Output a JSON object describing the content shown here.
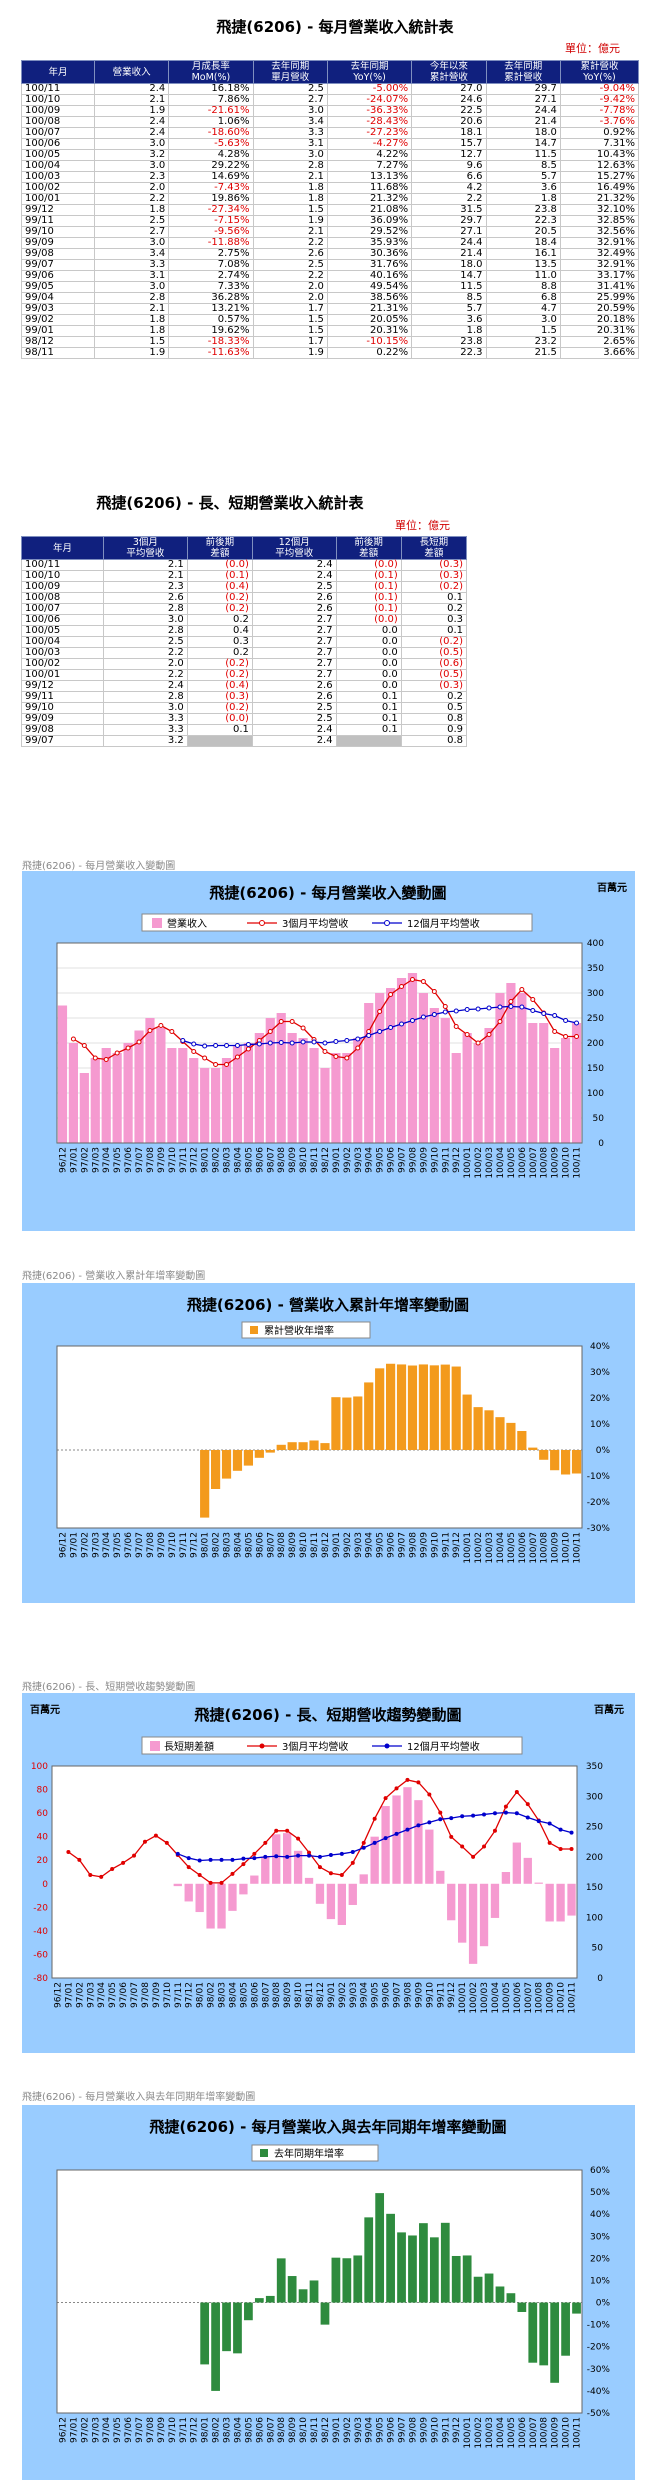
{
  "table1": {
    "title": "飛捷(6206) - 每月營業收入統計表",
    "unit": "單位：億元",
    "headers": [
      "年月",
      "營業收入",
      "月成長率\nMoM(%)",
      "去年同期\n單月營收",
      "去年同期\nYoY(%)",
      "今年以來\n累計營收",
      "去年同期\n累計營收",
      "累計營收\nYoY(%)"
    ],
    "rows": [
      [
        "100/11",
        "2.4",
        "16.18%",
        "2.5",
        "-5.00%",
        "27.0",
        "29.7",
        "-9.04%"
      ],
      [
        "100/10",
        "2.1",
        "7.86%",
        "2.7",
        "-24.07%",
        "24.6",
        "27.1",
        "-9.42%"
      ],
      [
        "100/09",
        "1.9",
        "-21.61%",
        "3.0",
        "-36.33%",
        "22.5",
        "24.4",
        "-7.78%"
      ],
      [
        "100/08",
        "2.4",
        "1.06%",
        "3.4",
        "-28.43%",
        "20.6",
        "21.4",
        "-3.76%"
      ],
      [
        "100/07",
        "2.4",
        "-18.60%",
        "3.3",
        "-27.23%",
        "18.1",
        "18.0",
        "0.92%"
      ],
      [
        "100/06",
        "3.0",
        "-5.63%",
        "3.1",
        "-4.27%",
        "15.7",
        "14.7",
        "7.31%"
      ],
      [
        "100/05",
        "3.2",
        "4.28%",
        "3.0",
        "4.22%",
        "12.7",
        "11.5",
        "10.43%"
      ],
      [
        "100/04",
        "3.0",
        "29.22%",
        "2.8",
        "7.27%",
        "9.6",
        "8.5",
        "12.63%"
      ],
      [
        "100/03",
        "2.3",
        "14.69%",
        "2.1",
        "13.13%",
        "6.6",
        "5.7",
        "15.27%"
      ],
      [
        "100/02",
        "2.0",
        "-7.43%",
        "1.8",
        "11.68%",
        "4.2",
        "3.6",
        "16.49%"
      ],
      [
        "100/01",
        "2.2",
        "19.86%",
        "1.8",
        "21.32%",
        "2.2",
        "1.8",
        "21.32%"
      ],
      [
        "99/12",
        "1.8",
        "-27.34%",
        "1.5",
        "21.08%",
        "31.5",
        "23.8",
        "32.10%"
      ],
      [
        "99/11",
        "2.5",
        "-7.15%",
        "1.9",
        "36.09%",
        "29.7",
        "22.3",
        "32.85%"
      ],
      [
        "99/10",
        "2.7",
        "-9.56%",
        "2.1",
        "29.52%",
        "27.1",
        "20.5",
        "32.56%"
      ],
      [
        "99/09",
        "3.0",
        "-11.88%",
        "2.2",
        "35.93%",
        "24.4",
        "18.4",
        "32.91%"
      ],
      [
        "99/08",
        "3.4",
        "2.75%",
        "2.6",
        "30.36%",
        "21.4",
        "16.1",
        "32.49%"
      ],
      [
        "99/07",
        "3.3",
        "7.08%",
        "2.5",
        "31.76%",
        "18.0",
        "13.5",
        "32.91%"
      ],
      [
        "99/06",
        "3.1",
        "2.74%",
        "2.2",
        "40.16%",
        "14.7",
        "11.0",
        "33.17%"
      ],
      [
        "99/05",
        "3.0",
        "7.33%",
        "2.0",
        "49.54%",
        "11.5",
        "8.8",
        "31.41%"
      ],
      [
        "99/04",
        "2.8",
        "36.28%",
        "2.0",
        "38.56%",
        "8.5",
        "6.8",
        "25.99%"
      ],
      [
        "99/03",
        "2.1",
        "13.21%",
        "1.7",
        "21.31%",
        "5.7",
        "4.7",
        "20.59%"
      ],
      [
        "99/02",
        "1.8",
        "0.57%",
        "1.5",
        "20.05%",
        "3.6",
        "3.0",
        "20.18%"
      ],
      [
        "99/01",
        "1.8",
        "19.62%",
        "1.5",
        "20.31%",
        "1.8",
        "1.5",
        "20.31%"
      ],
      [
        "98/12",
        "1.5",
        "-18.33%",
        "1.7",
        "-10.15%",
        "23.8",
        "23.2",
        "2.65%"
      ],
      [
        "98/11",
        "1.9",
        "-11.63%",
        "1.9",
        "0.22%",
        "22.3",
        "21.5",
        "3.66%"
      ]
    ]
  },
  "table2": {
    "title": "飛捷(6206) - 長、短期營業收入統計表",
    "unit": "單位：億元",
    "headers": [
      "年月",
      "3個月\n平均營收",
      "前後期\n差額",
      "12個月\n平均營收",
      "前後期\n差額",
      "長短期\n差額"
    ],
    "rows": [
      [
        "100/11",
        "2.1",
        "(0.0)",
        "2.4",
        "(0.0)",
        "(0.3)"
      ],
      [
        "100/10",
        "2.1",
        "(0.1)",
        "2.4",
        "(0.1)",
        "(0.3)"
      ],
      [
        "100/09",
        "2.3",
        "(0.4)",
        "2.5",
        "(0.1)",
        "(0.2)"
      ],
      [
        "100/08",
        "2.6",
        "(0.2)",
        "2.6",
        "(0.1)",
        "0.1"
      ],
      [
        "100/07",
        "2.8",
        "(0.2)",
        "2.6",
        "(0.1)",
        "0.2"
      ],
      [
        "100/06",
        "3.0",
        "0.2",
        "2.7",
        "(0.0)",
        "0.3"
      ],
      [
        "100/05",
        "2.8",
        "0.4",
        "2.7",
        "0.0",
        "0.1"
      ],
      [
        "100/04",
        "2.5",
        "0.3",
        "2.7",
        "0.0",
        "(0.2)"
      ],
      [
        "100/03",
        "2.2",
        "0.2",
        "2.7",
        "0.0",
        "(0.5)"
      ],
      [
        "100/02",
        "2.0",
        "(0.2)",
        "2.7",
        "0.0",
        "(0.6)"
      ],
      [
        "100/01",
        "2.2",
        "(0.2)",
        "2.7",
        "0.0",
        "(0.5)"
      ],
      [
        "99/12",
        "2.4",
        "(0.4)",
        "2.6",
        "0.0",
        "(0.3)"
      ],
      [
        "99/11",
        "2.8",
        "(0.3)",
        "2.6",
        "0.1",
        "0.2"
      ],
      [
        "99/10",
        "3.0",
        "(0.2)",
        "2.5",
        "0.1",
        "0.5"
      ],
      [
        "99/09",
        "3.3",
        "(0.0)",
        "2.5",
        "0.1",
        "0.8"
      ],
      [
        "99/08",
        "3.3",
        "0.1",
        "2.4",
        "0.1",
        "0.9"
      ],
      [
        "99/07",
        "3.2",
        "",
        "2.4",
        "",
        "0.8"
      ]
    ]
  },
  "section_labels": [
    "飛捷(6206) - 每月營業收入變動圖",
    "飛捷(6206) -  營業收入累計年增率變動圖",
    "飛捷(6206) -  長、短期營收趨勢變動圖",
    "飛捷(6206) - 每月營業收入與去年同期年增率變動圖"
  ],
  "colors": {
    "header_bg": "#10207e",
    "panel_bg": "#99ccff",
    "pink": "#f59ad0",
    "orange": "#f39a1c",
    "green": "#2e8b3e",
    "red": "#e00000",
    "blue": "#0000cc"
  },
  "chart_data": [
    {
      "type": "bar",
      "title": "飛捷(6206) - 每月營業收入變動圖",
      "unit_label": "百萬元",
      "xlabels": [
        "96/12",
        "97/01",
        "97/02",
        "97/03",
        "97/04",
        "97/05",
        "97/06",
        "97/07",
        "97/08",
        "97/09",
        "97/10",
        "97/11",
        "97/12",
        "98/01",
        "98/02",
        "98/03",
        "98/04",
        "98/05",
        "98/06",
        "98/07",
        "98/08",
        "98/09",
        "98/10",
        "98/11",
        "98/12",
        "99/01",
        "99/02",
        "99/03",
        "99/04",
        "99/05",
        "99/06",
        "99/07",
        "99/08",
        "99/09",
        "99/10",
        "99/11",
        "99/12",
        "100/01",
        "100/02",
        "100/03",
        "100/04",
        "100/05",
        "100/06",
        "100/07",
        "100/08",
        "100/09",
        "100/10",
        "100/11"
      ],
      "ylim": [
        0,
        400
      ],
      "series": [
        {
          "name": "營業收入",
          "type": "bar",
          "values": [
            275,
            200,
            140,
            170,
            190,
            180,
            200,
            225,
            250,
            230,
            190,
            190,
            170,
            150,
            150,
            170,
            195,
            200,
            220,
            250,
            260,
            220,
            210,
            190,
            150,
            180,
            180,
            210,
            280,
            300,
            310,
            330,
            340,
            300,
            270,
            250,
            180,
            220,
            200,
            230,
            300,
            320,
            300,
            240,
            240,
            190,
            210,
            240
          ]
        },
        {
          "name": "3個月平均營收",
          "type": "line",
          "values": [
            null,
            208,
            195,
            170,
            167,
            180,
            190,
            202,
            225,
            235,
            223,
            203,
            183,
            170,
            157,
            157,
            172,
            188,
            205,
            223,
            243,
            243,
            230,
            207,
            183,
            173,
            170,
            190,
            223,
            263,
            297,
            313,
            327,
            323,
            303,
            273,
            233,
            217,
            200,
            217,
            243,
            283,
            307,
            287,
            260,
            223,
            213,
            213
          ]
        },
        {
          "name": "12個月平均營收",
          "type": "line",
          "values": [
            null,
            null,
            null,
            null,
            null,
            null,
            null,
            null,
            null,
            null,
            null,
            205,
            198,
            194,
            195,
            195,
            195,
            197,
            198,
            200,
            201,
            200,
            202,
            202,
            200,
            203,
            205,
            208,
            215,
            223,
            231,
            238,
            245,
            252,
            257,
            262,
            264,
            267,
            268,
            270,
            272,
            273,
            272,
            265,
            259,
            255,
            245,
            240
          ]
        }
      ],
      "yticks": [
        0,
        50,
        100,
        150,
        200,
        250,
        300,
        350,
        400
      ]
    },
    {
      "type": "bar",
      "title": "飛捷(6206) -  營業收入累計年增率變動圖",
      "legend": "累計營收年增率",
      "xlabels": [
        "96/12",
        "97/01",
        "97/02",
        "97/03",
        "97/04",
        "97/05",
        "97/06",
        "97/07",
        "97/08",
        "97/09",
        "97/10",
        "97/11",
        "97/12",
        "98/01",
        "98/02",
        "98/03",
        "98/04",
        "98/05",
        "98/06",
        "98/07",
        "98/08",
        "98/09",
        "98/10",
        "98/11",
        "98/12",
        "99/01",
        "99/02",
        "99/03",
        "99/04",
        "99/05",
        "99/06",
        "99/07",
        "99/08",
        "99/09",
        "99/10",
        "99/11",
        "99/12",
        "100/01",
        "100/02",
        "100/03",
        "100/04",
        "100/05",
        "100/06",
        "100/07",
        "100/08",
        "100/09",
        "100/10",
        "100/11"
      ],
      "ylim": [
        -30,
        40
      ],
      "yticks": [
        -30,
        -20,
        -10,
        0,
        10,
        20,
        30,
        40
      ],
      "values": [
        null,
        null,
        null,
        null,
        null,
        null,
        null,
        null,
        null,
        null,
        null,
        null,
        null,
        -26,
        -15,
        -11,
        -8,
        -6,
        -3,
        -1,
        2,
        3,
        3,
        3.66,
        2.65,
        20.31,
        20.18,
        20.59,
        25.99,
        31.41,
        33.17,
        32.91,
        32.49,
        32.91,
        32.56,
        32.85,
        32.1,
        21.32,
        16.49,
        15.27,
        12.63,
        10.43,
        7.31,
        0.92,
        -3.76,
        -7.78,
        -9.42,
        -9.04
      ]
    },
    {
      "type": "bar",
      "title": "飛捷(6206) -  長、短期營收趨勢變動圖",
      "unit_label_left": "百萬元",
      "unit_label_right": "百萬元",
      "xlabels": [
        "96/12",
        "97/01",
        "97/02",
        "97/03",
        "97/04",
        "97/05",
        "97/06",
        "97/07",
        "97/08",
        "97/09",
        "97/10",
        "97/11",
        "97/12",
        "98/01",
        "98/02",
        "98/03",
        "98/04",
        "98/05",
        "98/06",
        "98/07",
        "98/08",
        "98/09",
        "98/10",
        "98/11",
        "98/12",
        "99/01",
        "99/02",
        "99/03",
        "99/04",
        "99/05",
        "99/06",
        "99/07",
        "99/08",
        "99/09",
        "99/10",
        "99/11",
        "99/12",
        "100/01",
        "100/02",
        "100/03",
        "100/04",
        "100/05",
        "100/06",
        "100/07",
        "100/08",
        "100/09",
        "100/10",
        "100/11"
      ],
      "ylim_left": [
        -80,
        100
      ],
      "ylim_right": [
        0,
        350
      ],
      "yticks_left": [
        -80,
        -60,
        -40,
        -20,
        0,
        20,
        40,
        60,
        80,
        100
      ],
      "yticks_right": [
        0,
        50,
        100,
        150,
        200,
        250,
        300,
        350
      ],
      "series": [
        {
          "name": "長短期差額",
          "type": "bar",
          "axis": "left",
          "values": [
            null,
            null,
            null,
            null,
            null,
            null,
            null,
            null,
            null,
            null,
            null,
            -2,
            -15,
            -24,
            -38,
            -38,
            -23,
            -9,
            7,
            23,
            42,
            43,
            28,
            5,
            -17,
            -30,
            -35,
            -18,
            8,
            40,
            66,
            75,
            82,
            71,
            46,
            11,
            -31,
            -50,
            -68,
            -53,
            -29,
            10,
            35,
            22,
            1,
            -32,
            -32,
            -27
          ]
        },
        {
          "name": "3個月平均營收",
          "type": "line",
          "axis": "right",
          "values": [
            null,
            208,
            195,
            170,
            167,
            180,
            190,
            202,
            225,
            235,
            223,
            203,
            183,
            170,
            157,
            157,
            172,
            188,
            205,
            223,
            243,
            243,
            230,
            207,
            183,
            173,
            170,
            190,
            223,
            263,
            297,
            313,
            327,
            323,
            303,
            273,
            233,
            217,
            200,
            217,
            243,
            283,
            307,
            287,
            260,
            223,
            213,
            213
          ]
        },
        {
          "name": "12個月平均營收",
          "type": "line",
          "axis": "right",
          "values": [
            null,
            null,
            null,
            null,
            null,
            null,
            null,
            null,
            null,
            null,
            null,
            205,
            198,
            194,
            195,
            195,
            195,
            197,
            198,
            200,
            201,
            200,
            202,
            202,
            200,
            203,
            205,
            208,
            215,
            223,
            231,
            238,
            245,
            252,
            257,
            262,
            264,
            267,
            268,
            270,
            272,
            273,
            272,
            265,
            259,
            255,
            245,
            240
          ]
        }
      ]
    },
    {
      "type": "bar",
      "title": "飛捷(6206) -  每月營業收入與去年同期年增率變動圖",
      "legend": "去年同期年增率",
      "xlabels": [
        "96/12",
        "97/01",
        "97/02",
        "97/03",
        "97/04",
        "97/05",
        "97/06",
        "97/07",
        "97/08",
        "97/09",
        "97/10",
        "97/11",
        "97/12",
        "98/01",
        "98/02",
        "98/03",
        "98/04",
        "98/05",
        "98/06",
        "98/07",
        "98/08",
        "98/09",
        "98/10",
        "98/11",
        "98/12",
        "99/01",
        "99/02",
        "99/03",
        "99/04",
        "99/05",
        "99/06",
        "99/07",
        "99/08",
        "99/09",
        "99/10",
        "99/11",
        "99/12",
        "100/01",
        "100/02",
        "100/03",
        "100/04",
        "100/05",
        "100/06",
        "100/07",
        "100/08",
        "100/09",
        "100/10",
        "100/11"
      ],
      "ylim": [
        -50,
        60
      ],
      "yticks": [
        -50,
        -40,
        -30,
        -20,
        -10,
        0,
        10,
        20,
        30,
        40,
        50,
        60
      ],
      "values": [
        null,
        null,
        null,
        null,
        null,
        null,
        null,
        null,
        null,
        null,
        null,
        null,
        null,
        -28,
        -40,
        -22,
        -23,
        -8,
        2,
        3,
        20,
        12,
        6,
        10,
        -10,
        20.31,
        20.05,
        21.31,
        38.56,
        49.54,
        40.16,
        31.76,
        30.36,
        35.93,
        29.52,
        36.09,
        21.08,
        21.32,
        11.68,
        13.13,
        7.27,
        4.22,
        -4.27,
        -27.23,
        -28.43,
        -36.33,
        -24.07,
        -5.0
      ]
    }
  ]
}
